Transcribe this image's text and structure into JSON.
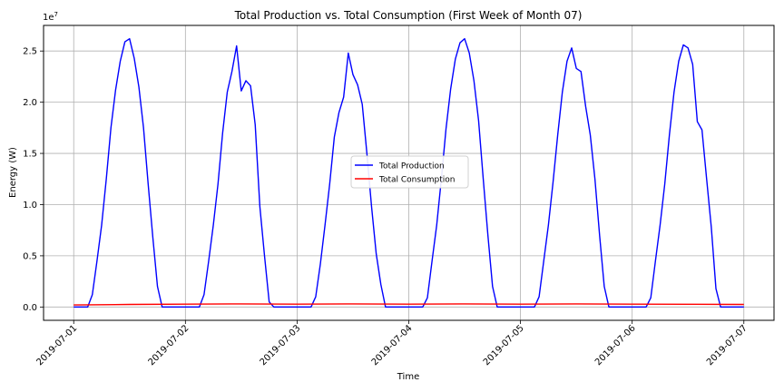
{
  "chart_data": {
    "type": "line",
    "title": "Total Production vs. Total Consumption (First Week of Month 07)",
    "xlabel": "Time",
    "ylabel": "Energy (W)",
    "y_scale_multiplier": "1e7",
    "xlim": [
      "2019-07-01",
      "2019-07-07"
    ],
    "ylim": [
      -1300000,
      27500000
    ],
    "x_ticks": [
      "2019-07-01",
      "2019-07-02",
      "2019-07-03",
      "2019-07-04",
      "2019-07-05",
      "2019-07-06",
      "2019-07-07"
    ],
    "y_ticks": [
      {
        "value": 0,
        "label": "0.0"
      },
      {
        "value": 5000000,
        "label": "0.5"
      },
      {
        "value": 10000000,
        "label": "1.0"
      },
      {
        "value": 15000000,
        "label": "1.5"
      },
      {
        "value": 20000000,
        "label": "2.0"
      },
      {
        "value": 25000000,
        "label": "2.5"
      }
    ],
    "grid": true,
    "legend_position": "center",
    "series": [
      {
        "name": "Total Production",
        "color": "#0000ff",
        "points": [
          [
            "2019-07-01T00:00",
            0
          ],
          [
            "2019-07-01T03:00",
            0
          ],
          [
            "2019-07-01T04:00",
            1200000
          ],
          [
            "2019-07-01T05:00",
            4500000
          ],
          [
            "2019-07-01T06:00",
            8000000
          ],
          [
            "2019-07-01T07:00",
            12500000
          ],
          [
            "2019-07-01T08:00",
            17500000
          ],
          [
            "2019-07-01T09:00",
            21200000
          ],
          [
            "2019-07-01T10:00",
            24000000
          ],
          [
            "2019-07-01T11:00",
            25900000
          ],
          [
            "2019-07-01T12:00",
            26200000
          ],
          [
            "2019-07-01T13:00",
            24300000
          ],
          [
            "2019-07-01T14:00",
            21500000
          ],
          [
            "2019-07-01T15:00",
            17500000
          ],
          [
            "2019-07-01T16:00",
            12000000
          ],
          [
            "2019-07-01T17:00",
            6800000
          ],
          [
            "2019-07-01T18:00",
            2000000
          ],
          [
            "2019-07-01T19:00",
            0
          ],
          [
            "2019-07-02T03:00",
            0
          ],
          [
            "2019-07-02T04:00",
            1200000
          ],
          [
            "2019-07-02T05:00",
            4500000
          ],
          [
            "2019-07-02T06:00",
            8000000
          ],
          [
            "2019-07-02T07:00",
            12000000
          ],
          [
            "2019-07-02T08:00",
            17000000
          ],
          [
            "2019-07-02T09:00",
            21000000
          ],
          [
            "2019-07-02T10:00",
            23000000
          ],
          [
            "2019-07-02T11:00",
            25500000
          ],
          [
            "2019-07-02T12:00",
            21100000
          ],
          [
            "2019-07-02T13:00",
            22100000
          ],
          [
            "2019-07-02T14:00",
            21600000
          ],
          [
            "2019-07-02T15:00",
            17800000
          ],
          [
            "2019-07-02T16:00",
            9800000
          ],
          [
            "2019-07-02T17:00",
            5000000
          ],
          [
            "2019-07-02T18:00",
            500000
          ],
          [
            "2019-07-02T19:00",
            0
          ],
          [
            "2019-07-03T03:00",
            0
          ],
          [
            "2019-07-03T04:00",
            1000000
          ],
          [
            "2019-07-03T05:00",
            4200000
          ],
          [
            "2019-07-03T06:00",
            8000000
          ],
          [
            "2019-07-03T07:00",
            12000000
          ],
          [
            "2019-07-03T08:00",
            16600000
          ],
          [
            "2019-07-03T09:00",
            19000000
          ],
          [
            "2019-07-03T10:00",
            20500000
          ],
          [
            "2019-07-03T11:00",
            24800000
          ],
          [
            "2019-07-03T12:00",
            22700000
          ],
          [
            "2019-07-03T13:00",
            21700000
          ],
          [
            "2019-07-03T14:00",
            19800000
          ],
          [
            "2019-07-03T15:00",
            15000000
          ],
          [
            "2019-07-03T16:00",
            9800000
          ],
          [
            "2019-07-03T17:00",
            5200000
          ],
          [
            "2019-07-03T18:00",
            2200000
          ],
          [
            "2019-07-03T19:00",
            0
          ],
          [
            "2019-07-04T03:00",
            0
          ],
          [
            "2019-07-04T04:00",
            900000
          ],
          [
            "2019-07-04T05:00",
            4500000
          ],
          [
            "2019-07-04T06:00",
            8000000
          ],
          [
            "2019-07-04T07:00",
            12500000
          ],
          [
            "2019-07-04T08:00",
            17400000
          ],
          [
            "2019-07-04T09:00",
            21300000
          ],
          [
            "2019-07-04T10:00",
            24200000
          ],
          [
            "2019-07-04T11:00",
            25800000
          ],
          [
            "2019-07-04T12:00",
            26200000
          ],
          [
            "2019-07-04T13:00",
            24800000
          ],
          [
            "2019-07-04T14:00",
            22100000
          ],
          [
            "2019-07-04T15:00",
            18200000
          ],
          [
            "2019-07-04T16:00",
            12500000
          ],
          [
            "2019-07-04T17:00",
            7000000
          ],
          [
            "2019-07-04T18:00",
            2000000
          ],
          [
            "2019-07-04T19:00",
            0
          ],
          [
            "2019-07-05T03:00",
            0
          ],
          [
            "2019-07-05T04:00",
            1000000
          ],
          [
            "2019-07-05T05:00",
            4500000
          ],
          [
            "2019-07-05T06:00",
            8000000
          ],
          [
            "2019-07-05T07:00",
            12200000
          ],
          [
            "2019-07-05T08:00",
            16800000
          ],
          [
            "2019-07-05T09:00",
            21000000
          ],
          [
            "2019-07-05T10:00",
            24000000
          ],
          [
            "2019-07-05T11:00",
            25300000
          ],
          [
            "2019-07-05T12:00",
            23300000
          ],
          [
            "2019-07-05T13:00",
            23000000
          ],
          [
            "2019-07-05T14:00",
            19600000
          ],
          [
            "2019-07-05T15:00",
            16800000
          ],
          [
            "2019-07-05T16:00",
            12500000
          ],
          [
            "2019-07-05T17:00",
            7000000
          ],
          [
            "2019-07-05T18:00",
            2000000
          ],
          [
            "2019-07-05T19:00",
            0
          ],
          [
            "2019-07-06T03:00",
            0
          ],
          [
            "2019-07-06T04:00",
            900000
          ],
          [
            "2019-07-06T05:00",
            4500000
          ],
          [
            "2019-07-06T06:00",
            8000000
          ],
          [
            "2019-07-06T07:00",
            12000000
          ],
          [
            "2019-07-06T08:00",
            16800000
          ],
          [
            "2019-07-06T09:00",
            21000000
          ],
          [
            "2019-07-06T10:00",
            24000000
          ],
          [
            "2019-07-06T11:00",
            25600000
          ],
          [
            "2019-07-06T12:00",
            25300000
          ],
          [
            "2019-07-06T13:00",
            23700000
          ],
          [
            "2019-07-06T14:00",
            18100000
          ],
          [
            "2019-07-06T15:00",
            17300000
          ],
          [
            "2019-07-06T16:00",
            12500000
          ],
          [
            "2019-07-06T17:00",
            7800000
          ],
          [
            "2019-07-06T18:00",
            1800000
          ],
          [
            "2019-07-06T19:00",
            0
          ],
          [
            "2019-07-07T00:00",
            0
          ]
        ]
      },
      {
        "name": "Total Consumption",
        "color": "#ff0000",
        "points": [
          [
            "2019-07-01T00:00",
            200000
          ],
          [
            "2019-07-01T12:00",
            250000
          ],
          [
            "2019-07-02T00:00",
            280000
          ],
          [
            "2019-07-02T12:00",
            300000
          ],
          [
            "2019-07-03T00:00",
            280000
          ],
          [
            "2019-07-03T12:00",
            300000
          ],
          [
            "2019-07-04T00:00",
            280000
          ],
          [
            "2019-07-04T12:00",
            300000
          ],
          [
            "2019-07-05T00:00",
            280000
          ],
          [
            "2019-07-05T12:00",
            300000
          ],
          [
            "2019-07-06T00:00",
            280000
          ],
          [
            "2019-07-06T12:00",
            270000
          ],
          [
            "2019-07-07T00:00",
            250000
          ]
        ]
      }
    ]
  }
}
